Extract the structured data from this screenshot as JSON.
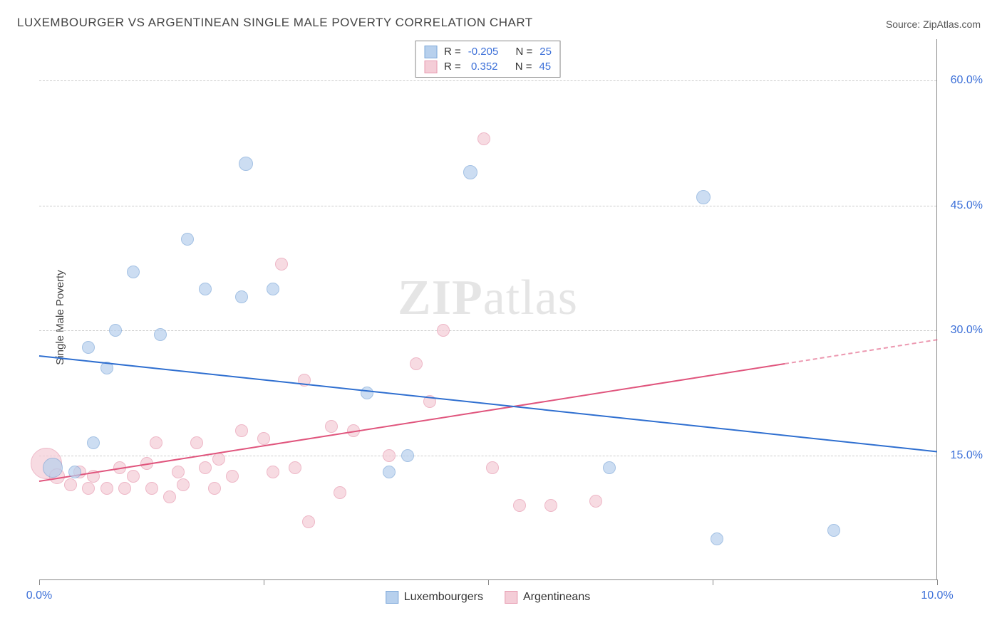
{
  "title": "LUXEMBOURGER VS ARGENTINEAN SINGLE MALE POVERTY CORRELATION CHART",
  "source": "Source: ZipAtlas.com",
  "ylabel": "Single Male Poverty",
  "watermark_a": "ZIP",
  "watermark_b": "atlas",
  "chart": {
    "type": "scatter",
    "xlim": [
      0,
      10
    ],
    "ylim": [
      0,
      65
    ],
    "yticks": [
      15,
      30,
      45,
      60
    ],
    "ytick_labels": [
      "15.0%",
      "30.0%",
      "45.0%",
      "60.0%"
    ],
    "xticks": [
      0,
      2.5,
      5,
      7.5,
      10
    ],
    "xtick_labels_shown": {
      "0": "0.0%",
      "10": "10.0%"
    },
    "background_color": "#ffffff",
    "grid_color": "#cccccc",
    "axis_color": "#888888",
    "tick_label_color": "#3b6fd8",
    "series": {
      "luxembourgers": {
        "label": "Luxembourgers",
        "fill": "#b7d0ed",
        "stroke": "#7ea8d9",
        "fill_opacity": 0.7,
        "trend_color": "#2f6fd0",
        "R": -0.205,
        "R_text": "-0.205",
        "N": 25,
        "N_text": "25",
        "trend": {
          "x1": 0,
          "y1": 27,
          "x2": 10,
          "y2": 15.5
        },
        "points": [
          {
            "x": 0.15,
            "y": 13.5,
            "r": 14
          },
          {
            "x": 0.6,
            "y": 16.5,
            "r": 9
          },
          {
            "x": 0.4,
            "y": 13,
            "r": 9
          },
          {
            "x": 0.55,
            "y": 28,
            "r": 9
          },
          {
            "x": 0.85,
            "y": 30,
            "r": 9
          },
          {
            "x": 0.75,
            "y": 25.5,
            "r": 9
          },
          {
            "x": 1.05,
            "y": 37,
            "r": 9
          },
          {
            "x": 1.35,
            "y": 29.5,
            "r": 9
          },
          {
            "x": 1.65,
            "y": 41,
            "r": 9
          },
          {
            "x": 1.85,
            "y": 35,
            "r": 9
          },
          {
            "x": 2.25,
            "y": 34,
            "r": 9
          },
          {
            "x": 2.3,
            "y": 50,
            "r": 10
          },
          {
            "x": 2.6,
            "y": 35,
            "r": 9
          },
          {
            "x": 3.65,
            "y": 22.5,
            "r": 9
          },
          {
            "x": 3.9,
            "y": 13,
            "r": 9
          },
          {
            "x": 4.1,
            "y": 15,
            "r": 9
          },
          {
            "x": 4.8,
            "y": 49,
            "r": 10
          },
          {
            "x": 6.35,
            "y": 13.5,
            "r": 9
          },
          {
            "x": 7.4,
            "y": 46,
            "r": 10
          },
          {
            "x": 7.55,
            "y": 5,
            "r": 9
          },
          {
            "x": 8.85,
            "y": 6,
            "r": 9
          }
        ]
      },
      "argentineans": {
        "label": "Argentineans",
        "fill": "#f4cdd7",
        "stroke": "#e79ab0",
        "fill_opacity": 0.7,
        "trend_color": "#e0557d",
        "trend_dash_after_x": 8.3,
        "R": 0.352,
        "R_text": "0.352",
        "N": 45,
        "N_text": "45",
        "trend": {
          "x1": 0,
          "y1": 12,
          "x2": 10,
          "y2": 29
        },
        "points": [
          {
            "x": 0.08,
            "y": 14,
            "r": 22
          },
          {
            "x": 0.2,
            "y": 12.5,
            "r": 11
          },
          {
            "x": 0.35,
            "y": 11.5,
            "r": 9
          },
          {
            "x": 0.45,
            "y": 13,
            "r": 9
          },
          {
            "x": 0.55,
            "y": 11,
            "r": 9
          },
          {
            "x": 0.6,
            "y": 12.5,
            "r": 9
          },
          {
            "x": 0.75,
            "y": 11,
            "r": 9
          },
          {
            "x": 0.9,
            "y": 13.5,
            "r": 9
          },
          {
            "x": 0.95,
            "y": 11,
            "r": 9
          },
          {
            "x": 1.05,
            "y": 12.5,
            "r": 9
          },
          {
            "x": 1.2,
            "y": 14,
            "r": 9
          },
          {
            "x": 1.25,
            "y": 11,
            "r": 9
          },
          {
            "x": 1.3,
            "y": 16.5,
            "r": 9
          },
          {
            "x": 1.45,
            "y": 10,
            "r": 9
          },
          {
            "x": 1.55,
            "y": 13,
            "r": 9
          },
          {
            "x": 1.6,
            "y": 11.5,
            "r": 9
          },
          {
            "x": 1.75,
            "y": 16.5,
            "r": 9
          },
          {
            "x": 1.85,
            "y": 13.5,
            "r": 9
          },
          {
            "x": 1.95,
            "y": 11,
            "r": 9
          },
          {
            "x": 2.0,
            "y": 14.5,
            "r": 9
          },
          {
            "x": 2.15,
            "y": 12.5,
            "r": 9
          },
          {
            "x": 2.25,
            "y": 18,
            "r": 9
          },
          {
            "x": 2.5,
            "y": 17,
            "r": 9
          },
          {
            "x": 2.6,
            "y": 13,
            "r": 9
          },
          {
            "x": 2.7,
            "y": 38,
            "r": 9
          },
          {
            "x": 2.85,
            "y": 13.5,
            "r": 9
          },
          {
            "x": 2.95,
            "y": 24,
            "r": 9
          },
          {
            "x": 3.0,
            "y": 7,
            "r": 9
          },
          {
            "x": 3.25,
            "y": 18.5,
            "r": 9
          },
          {
            "x": 3.35,
            "y": 10.5,
            "r": 9
          },
          {
            "x": 3.5,
            "y": 18,
            "r": 9
          },
          {
            "x": 3.9,
            "y": 15,
            "r": 9
          },
          {
            "x": 4.2,
            "y": 26,
            "r": 9
          },
          {
            "x": 4.35,
            "y": 21.5,
            "r": 9
          },
          {
            "x": 4.5,
            "y": 30,
            "r": 9
          },
          {
            "x": 4.95,
            "y": 53,
            "r": 9
          },
          {
            "x": 5.05,
            "y": 13.5,
            "r": 9
          },
          {
            "x": 5.35,
            "y": 9,
            "r": 9
          },
          {
            "x": 5.7,
            "y": 9,
            "r": 9
          },
          {
            "x": 6.2,
            "y": 9.5,
            "r": 9
          }
        ]
      }
    }
  },
  "stats_labels": {
    "R": "R =",
    "N": "N ="
  }
}
